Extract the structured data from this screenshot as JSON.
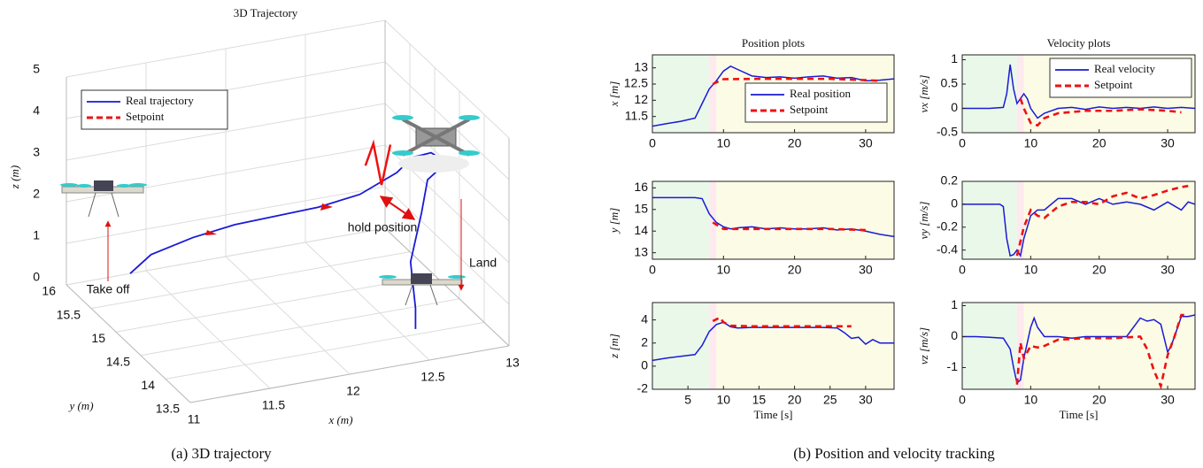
{
  "captions": [
    "(a) 3D trajectory",
    "(b) Position and velocity tracking"
  ],
  "chart_data": [
    {
      "type": "line3d",
      "title": "3D Trajectory",
      "xlabel": "x (m)",
      "ylabel": "y (m)",
      "zlabel": "z (m)",
      "xlim": [
        11,
        13
      ],
      "ylim": [
        13.5,
        16
      ],
      "zlim": [
        0,
        5
      ],
      "xticks": [
        11,
        11.5,
        12,
        12.5,
        13
      ],
      "yticks": [
        13.5,
        14,
        14.5,
        15,
        15.5,
        16
      ],
      "zticks": [
        0,
        1,
        2,
        3,
        4,
        5
      ],
      "grid": true,
      "legend": "upper left",
      "annotations": [
        "Take off",
        "hold position",
        "Land"
      ],
      "series": [
        {
          "name": "Real trajectory",
          "color": "#1a1ad6",
          "dash": false,
          "x": [
            11.4,
            11.5,
            11.7,
            11.9,
            12.1,
            12.3,
            12.5,
            12.7,
            12.8,
            12.9,
            12.95,
            12.8,
            12.7,
            12.6,
            12.6,
            12.6
          ],
          "y": [
            16,
            15.9,
            15.7,
            15.5,
            15.3,
            15.1,
            14.9,
            14.8,
            14.8,
            14.75,
            14.6,
            14.5,
            14.3,
            14.2,
            14.1,
            14.1
          ],
          "z": [
            0,
            0.5,
            1.0,
            1.4,
            1.7,
            2.0,
            2.4,
            2.9,
            3.2,
            3.3,
            3.2,
            3.0,
            2.5,
            1.5,
            0.5,
            0
          ]
        },
        {
          "name": "Setpoint",
          "color": "#ee1111",
          "dash": true,
          "x": [
            12.55,
            12.6,
            12.62,
            12.66
          ],
          "y": [
            14.95,
            14.95,
            14.85,
            14.8
          ],
          "z": [
            3.0,
            3.5,
            2.6,
            3.6
          ]
        }
      ]
    },
    {
      "type": "line",
      "title": "Position plots",
      "ylabel": "x [m]",
      "xlim": [
        0,
        34
      ],
      "xticks": [
        0,
        10,
        20,
        30
      ],
      "ylim": [
        11,
        13.4
      ],
      "yticks": [
        11.5,
        12,
        12.5,
        13
      ],
      "legend": "center right",
      "regions": [
        {
          "from": 0,
          "to": 8,
          "color": "#eaf8ea"
        },
        {
          "from": 8,
          "to": 9,
          "color": "#fde9ee"
        },
        {
          "from": 9,
          "to": 34,
          "color": "#fbfbe6"
        }
      ],
      "series": [
        {
          "name": "Real position",
          "color": "#1a1ad6",
          "dash": false,
          "x": [
            0,
            2,
            4,
            6,
            7,
            8,
            9,
            10,
            11,
            12,
            14,
            16,
            18,
            20,
            22,
            24,
            26,
            28,
            30,
            32,
            34
          ],
          "values": [
            11.2,
            11.28,
            11.35,
            11.45,
            11.9,
            12.35,
            12.6,
            12.9,
            13.05,
            12.95,
            12.75,
            12.7,
            12.72,
            12.68,
            12.72,
            12.75,
            12.68,
            12.7,
            12.6,
            12.62,
            12.66
          ]
        },
        {
          "name": "Setpoint",
          "color": "#ee1111",
          "dash": true,
          "x": [
            8.5,
            10,
            15,
            20,
            25,
            30,
            32
          ],
          "values": [
            12.5,
            12.65,
            12.66,
            12.66,
            12.66,
            12.62,
            12.6
          ]
        }
      ]
    },
    {
      "type": "line",
      "title": "Velocity plots",
      "ylabel": "vx [m/s]",
      "xlim": [
        0,
        34
      ],
      "xticks": [
        0,
        10,
        20,
        30
      ],
      "ylim": [
        -0.5,
        1.1
      ],
      "yticks": [
        -0.5,
        0,
        0.5,
        1
      ],
      "legend": "upper right",
      "regions": [
        {
          "from": 0,
          "to": 8,
          "color": "#eaf8ea"
        },
        {
          "from": 8,
          "to": 9,
          "color": "#fde9ee"
        },
        {
          "from": 9,
          "to": 34,
          "color": "#fbfbe6"
        }
      ],
      "series": [
        {
          "name": "Real velocity",
          "color": "#1a1ad6",
          "dash": false,
          "x": [
            0,
            2,
            4,
            6,
            6.5,
            7,
            7.5,
            8,
            8.5,
            9,
            9.5,
            10,
            11,
            12,
            14,
            16,
            18,
            20,
            22,
            24,
            26,
            28,
            30,
            32,
            34
          ],
          "values": [
            0,
            0,
            0,
            0.02,
            0.3,
            0.9,
            0.4,
            0.1,
            0.2,
            0.3,
            0.2,
            0,
            -0.2,
            -0.1,
            0,
            0.02,
            -0.02,
            0.03,
            0,
            0.02,
            0,
            0.03,
            0,
            0.02,
            0
          ]
        },
        {
          "name": "Setpoint",
          "color": "#ee1111",
          "dash": true,
          "x": [
            8.5,
            9,
            10,
            11,
            12,
            14,
            18,
            22,
            26,
            30,
            32
          ],
          "values": [
            0.2,
            0,
            -0.3,
            -0.35,
            -0.2,
            -0.1,
            -0.05,
            -0.05,
            -0.02,
            -0.05,
            -0.08
          ]
        }
      ]
    },
    {
      "type": "line",
      "ylabel": "y [m]",
      "xlim": [
        0,
        34
      ],
      "xticks": [
        0,
        10,
        20,
        30
      ],
      "ylim": [
        12.7,
        16.3
      ],
      "yticks": [
        13,
        14,
        15,
        16
      ],
      "regions": [
        {
          "from": 0,
          "to": 8,
          "color": "#eaf8ea"
        },
        {
          "from": 8,
          "to": 9,
          "color": "#fde9ee"
        },
        {
          "from": 9,
          "to": 34,
          "color": "#fbfbe6"
        }
      ],
      "series": [
        {
          "color": "#1a1ad6",
          "dash": false,
          "x": [
            0,
            2,
            4,
            6,
            7,
            8,
            9,
            10,
            11,
            12,
            14,
            16,
            18,
            20,
            22,
            24,
            26,
            28,
            30,
            32,
            34
          ],
          "values": [
            15.55,
            15.55,
            15.55,
            15.55,
            15.5,
            14.8,
            14.4,
            14.2,
            14.1,
            14.15,
            14.2,
            14.1,
            14.15,
            14.1,
            14.1,
            14.15,
            14.05,
            14.1,
            14.0,
            13.85,
            13.75
          ]
        },
        {
          "color": "#ee1111",
          "dash": true,
          "x": [
            8.5,
            10,
            15,
            20,
            25,
            30
          ],
          "values": [
            14.4,
            14.1,
            14.1,
            14.1,
            14.1,
            14.05
          ]
        }
      ]
    },
    {
      "type": "line",
      "ylabel": "vy [m/s]",
      "xlim": [
        0,
        34
      ],
      "xticks": [
        0,
        10,
        20,
        30
      ],
      "ylim": [
        -0.48,
        0.2
      ],
      "yticks": [
        -0.4,
        -0.2,
        0,
        0.2
      ],
      "regions": [
        {
          "from": 0,
          "to": 8,
          "color": "#eaf8ea"
        },
        {
          "from": 8,
          "to": 9,
          "color": "#fde9ee"
        },
        {
          "from": 9,
          "to": 34,
          "color": "#fbfbe6"
        }
      ],
      "series": [
        {
          "color": "#1a1ad6",
          "dash": false,
          "x": [
            0,
            2,
            4,
            5.5,
            6,
            6.5,
            7,
            7.5,
            8,
            8.5,
            9,
            10,
            11,
            12,
            14,
            16,
            18,
            20,
            22,
            24,
            26,
            28,
            30,
            32,
            33,
            34
          ],
          "values": [
            0,
            0,
            0,
            0,
            -0.02,
            -0.3,
            -0.45,
            -0.44,
            -0.4,
            -0.45,
            -0.3,
            -0.1,
            -0.05,
            -0.05,
            0.05,
            0.05,
            0,
            0.05,
            0,
            0.02,
            0,
            -0.05,
            0.02,
            -0.05,
            0.02,
            0
          ]
        },
        {
          "color": "#ee1111",
          "dash": true,
          "x": [
            8,
            9,
            10,
            11,
            12,
            14,
            16,
            18,
            20,
            22,
            24,
            26,
            28,
            30,
            32,
            33
          ],
          "values": [
            -0.45,
            -0.2,
            -0.05,
            -0.1,
            -0.12,
            -0.02,
            0.02,
            0.02,
            0.0,
            0.07,
            0.1,
            0.05,
            0.08,
            0.12,
            0.15,
            0.16
          ]
        }
      ]
    },
    {
      "type": "line",
      "ylabel": "z [m]",
      "xlabel": "Time [s]",
      "xlim": [
        0,
        34
      ],
      "xticks": [
        5,
        10,
        15,
        20,
        25,
        30
      ],
      "ylim": [
        -2,
        5.5
      ],
      "yticks": [
        -2,
        0,
        2,
        4
      ],
      "regions": [
        {
          "from": 0,
          "to": 8,
          "color": "#eaf8ea"
        },
        {
          "from": 8,
          "to": 9,
          "color": "#fde9ee"
        },
        {
          "from": 9,
          "to": 34,
          "color": "#fbfbe6"
        }
      ],
      "series": [
        {
          "color": "#1a1ad6",
          "dash": false,
          "x": [
            0,
            2,
            4,
            6,
            7,
            8,
            9,
            10,
            11,
            12,
            14,
            16,
            18,
            20,
            22,
            24,
            26,
            27,
            28,
            29,
            30,
            31,
            32,
            34
          ],
          "values": [
            0.5,
            0.7,
            0.85,
            1.0,
            1.8,
            3.0,
            3.6,
            3.8,
            3.4,
            3.3,
            3.35,
            3.35,
            3.35,
            3.35,
            3.35,
            3.35,
            3.3,
            2.9,
            2.4,
            2.5,
            1.9,
            2.3,
            2.0,
            2.0
          ]
        },
        {
          "color": "#ee1111",
          "dash": true,
          "x": [
            8.5,
            9.5,
            10,
            11,
            14,
            18,
            22,
            26,
            28
          ],
          "values": [
            3.9,
            4.2,
            3.8,
            3.5,
            3.45,
            3.45,
            3.45,
            3.45,
            3.45
          ]
        }
      ]
    },
    {
      "type": "line",
      "ylabel": "vz [m/s]",
      "xlabel": "Time [s]",
      "xlim": [
        0,
        34
      ],
      "xticks": [
        0,
        10,
        20,
        30
      ],
      "ylim": [
        -1.7,
        1.1
      ],
      "yticks": [
        -1,
        0,
        1
      ],
      "regions": [
        {
          "from": 0,
          "to": 8,
          "color": "#eaf8ea"
        },
        {
          "from": 8,
          "to": 9,
          "color": "#fde9ee"
        },
        {
          "from": 9,
          "to": 34,
          "color": "#fbfbe6"
        }
      ],
      "series": [
        {
          "color": "#1a1ad6",
          "dash": false,
          "x": [
            0,
            2,
            4,
            6,
            7,
            7.5,
            8,
            8.5,
            9,
            9.5,
            10,
            10.5,
            11,
            12,
            14,
            16,
            18,
            20,
            22,
            24,
            26,
            27,
            28,
            29,
            30,
            30.5,
            31,
            32,
            33,
            34
          ],
          "values": [
            0,
            0,
            -0.02,
            -0.05,
            -0.4,
            -1.0,
            -1.5,
            -1.4,
            -0.7,
            -0.2,
            0.3,
            0.6,
            0.3,
            0,
            0,
            -0.05,
            0,
            0,
            0,
            0,
            0.6,
            0.5,
            0.55,
            0.4,
            -0.5,
            -0.3,
            0,
            0.65,
            0.65,
            0.7
          ]
        },
        {
          "color": "#ee1111",
          "dash": true,
          "x": [
            8,
            8.5,
            9,
            10,
            11,
            12,
            14,
            18,
            22,
            26,
            27,
            28,
            29,
            30,
            31,
            32,
            33
          ],
          "values": [
            -1.55,
            -0.2,
            -0.7,
            -0.3,
            -0.35,
            -0.3,
            -0.1,
            -0.05,
            -0.05,
            0,
            -0.4,
            -1.1,
            -1.6,
            -0.6,
            0,
            0.7,
            0.7
          ]
        }
      ]
    }
  ]
}
